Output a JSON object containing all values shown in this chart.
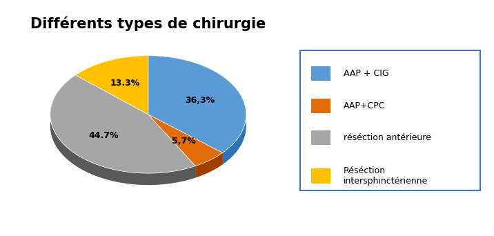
{
  "title": "Différents types de chirurgie",
  "title_fontsize": 15,
  "title_fontweight": "bold",
  "slices": [
    36.3,
    5.7,
    44.7,
    13.3
  ],
  "pct_labels": [
    "36,3%",
    "5,7%",
    "44.7%",
    "13.3%"
  ],
  "colors": [
    "#5B9BD5",
    "#E36C0A",
    "#A6A6A6",
    "#FFC000"
  ],
  "dark_colors": [
    "#2E75B6",
    "#A04000",
    "#595959",
    "#B8860B"
  ],
  "legend_labels": [
    "AAP + CIG",
    "AAP+CPC",
    "réséction antérieure",
    "Réséction\nintersphinctérienne"
  ],
  "startangle": 90,
  "depth": 0.12,
  "figsize": [
    7.16,
    3.42
  ],
  "dpi": 100
}
